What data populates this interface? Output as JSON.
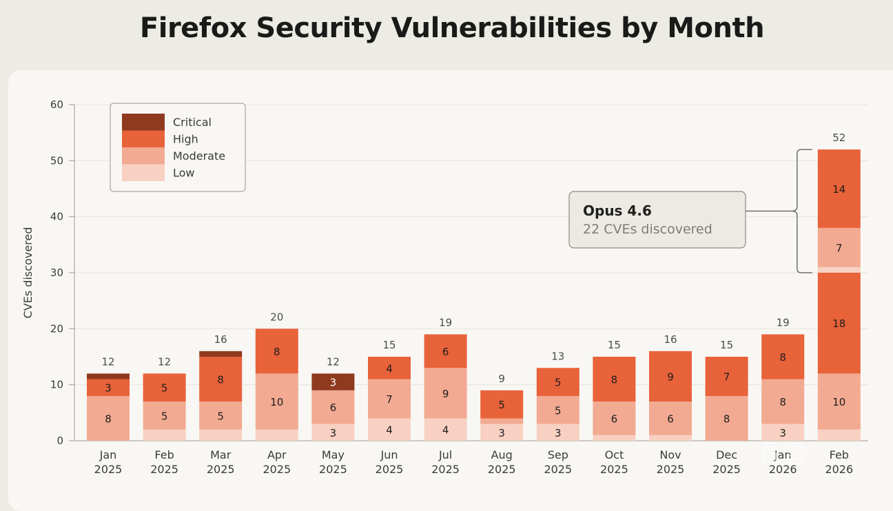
{
  "title": "Firefox Security Vulnerabilities by Month",
  "colors": {
    "Critical": "#8f3a1f",
    "High": "#e8623a",
    "Moderate": "#f2aa92",
    "Low": "#f8d1c3",
    "bracket": "#6f6e69",
    "text": "#2b2b29"
  },
  "legend": {
    "items": [
      "Critical",
      "High",
      "Moderate",
      "Low"
    ],
    "placement": "top-left"
  },
  "callout": {
    "title": "Opus 4.6",
    "subtitle": "22 CVEs discovered"
  },
  "watermark": "看雪",
  "chart_data": {
    "type": "bar",
    "stacked": true,
    "title": "Firefox Security Vulnerabilities by Month",
    "ylabel": "CVEs discovered",
    "xlabel": "",
    "ylim": [
      0,
      60
    ],
    "yticks": [
      0,
      10,
      20,
      30,
      40,
      50,
      60
    ],
    "grid": true,
    "categories": [
      [
        "Jan",
        "2025"
      ],
      [
        "Feb",
        "2025"
      ],
      [
        "Mar",
        "2025"
      ],
      [
        "Apr",
        "2025"
      ],
      [
        "May",
        "2025"
      ],
      [
        "Jun",
        "2025"
      ],
      [
        "Jul",
        "2025"
      ],
      [
        "Aug",
        "2025"
      ],
      [
        "Sep",
        "2025"
      ],
      [
        "Oct",
        "2025"
      ],
      [
        "Nov",
        "2025"
      ],
      [
        "Dec",
        "2025"
      ],
      [
        "Jan",
        "2026"
      ],
      [
        "Feb",
        "2026"
      ]
    ],
    "totals": [
      12,
      12,
      16,
      20,
      12,
      15,
      19,
      9,
      13,
      15,
      16,
      15,
      19,
      52
    ],
    "series": [
      {
        "name": "Low",
        "values": [
          0,
          2,
          2,
          2,
          3,
          4,
          4,
          3,
          3,
          1,
          1,
          0,
          3,
          2
        ]
      },
      {
        "name": "Moderate",
        "values": [
          8,
          5,
          5,
          10,
          6,
          7,
          9,
          1,
          5,
          6,
          6,
          8,
          8,
          10
        ]
      },
      {
        "name": "High",
        "values": [
          3,
          5,
          8,
          8,
          0,
          4,
          6,
          5,
          5,
          8,
          9,
          7,
          8,
          18
        ]
      },
      {
        "name": "Critical",
        "values": [
          1,
          0,
          1,
          0,
          3,
          0,
          0,
          0,
          0,
          0,
          0,
          0,
          0,
          0
        ]
      },
      {
        "name": "Low",
        "values": [
          0,
          0,
          0,
          0,
          0,
          0,
          0,
          0,
          0,
          0,
          0,
          0,
          0,
          1
        ]
      },
      {
        "name": "Moderate",
        "values": [
          0,
          0,
          0,
          0,
          0,
          0,
          0,
          0,
          0,
          0,
          0,
          0,
          0,
          7
        ]
      },
      {
        "name": "High",
        "values": [
          0,
          0,
          0,
          0,
          0,
          0,
          0,
          0,
          0,
          0,
          0,
          0,
          0,
          14
        ]
      }
    ],
    "segment_labels": [
      [
        null,
        null,
        null,
        null,
        "3",
        "4",
        "4",
        "3",
        "3",
        null,
        null,
        null,
        "3",
        null
      ],
      [
        "8",
        "5",
        "5",
        "10",
        "6",
        "7",
        "9",
        null,
        "5",
        "6",
        "6",
        "8",
        "8",
        "10"
      ],
      [
        "3",
        "5",
        "8",
        "8",
        null,
        "4",
        "6",
        "5",
        "5",
        "8",
        "9",
        "7",
        "8",
        "18"
      ],
      [
        null,
        null,
        null,
        null,
        "3",
        null,
        null,
        null,
        null,
        null,
        null,
        null,
        null,
        null
      ],
      [
        null,
        null,
        null,
        null,
        null,
        null,
        null,
        null,
        null,
        null,
        null,
        null,
        null,
        null
      ],
      [
        null,
        null,
        null,
        null,
        null,
        null,
        null,
        null,
        null,
        null,
        null,
        null,
        null,
        "7"
      ],
      [
        null,
        null,
        null,
        null,
        null,
        null,
        null,
        null,
        null,
        null,
        null,
        null,
        null,
        "14"
      ]
    ],
    "annotation": {
      "category_index": 13,
      "range": [
        30,
        52
      ],
      "title": "Opus 4.6",
      "subtitle": "22 CVEs discovered"
    }
  }
}
